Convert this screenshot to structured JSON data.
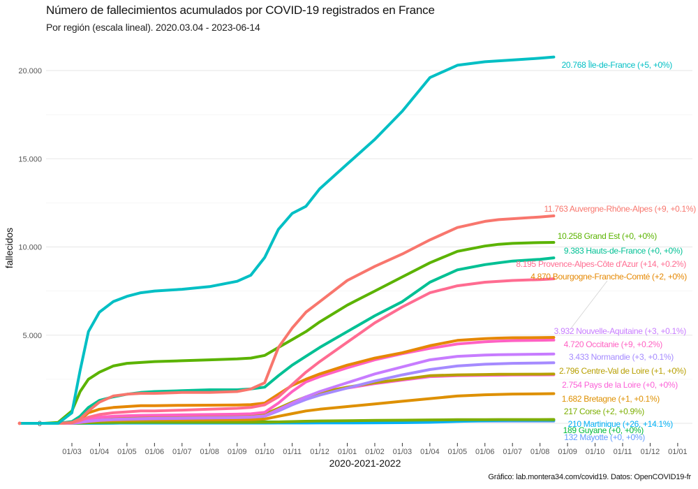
{
  "header": {
    "title": "Número de fallecimientos acumulados por COVID-19 registrados en France",
    "subtitle": "Por región (escala lineal). 2020.03.04 - 2023-06-14"
  },
  "caption": "Gráfico: lab.montera34.com/covid19. Datos: OpenCOVID19-fr",
  "chart_data": {
    "type": "line",
    "title": "Número de fallecimientos acumulados por COVID-19 registrados en France",
    "subtitle": "Por región (escala lineal). 2020.03.04 - 2023-06-14",
    "xlabel": "2020-2021-2022",
    "ylabel": "fallecidos",
    "x_unit": "months since 2020-02-01",
    "xlim": [
      -0.9,
      23.0
    ],
    "ylim": [
      0,
      21500
    ],
    "grid": true,
    "legend": "direct labels at line ends (right)",
    "x_ticks": [
      "01/03",
      "01/04",
      "01/05",
      "01/06",
      "01/07",
      "01/08",
      "01/09",
      "01/10",
      "01/11",
      "01/12",
      "01/01",
      "01/02",
      "01/03",
      "01/04",
      "01/05",
      "01/06",
      "01/07",
      "01/08",
      "01/09",
      "01/10",
      "01/11",
      "01/12",
      "01/01"
    ],
    "y_ticks": [
      {
        "value": 0,
        "label": "0"
      },
      {
        "value": 5000,
        "label": "5.000"
      },
      {
        "value": 10000,
        "label": "10.000"
      },
      {
        "value": 15000,
        "label": "15.000"
      },
      {
        "value": 20000,
        "label": "20.000"
      }
    ],
    "x": [
      -0.9,
      0.0,
      0.5,
      1.0,
      1.3,
      1.6,
      2.0,
      2.5,
      3.0,
      3.5,
      4.0,
      5.0,
      6.0,
      7.0,
      7.5,
      8.0,
      8.5,
      9.0,
      9.5,
      10.0,
      11.0,
      12.0,
      13.0,
      14.0,
      15.0,
      16.0,
      16.5,
      17.0,
      18.0,
      18.5
    ],
    "series": [
      {
        "name": "Île-de-France",
        "label": "20.768 Île-de-France (+5, +0%)",
        "color": "#00BFC4",
        "values": [
          0,
          0,
          0,
          600,
          3000,
          5200,
          6300,
          6900,
          7200,
          7400,
          7500,
          7600,
          7750,
          8050,
          8400,
          9400,
          11000,
          11900,
          12300,
          13300,
          14700,
          16100,
          17700,
          19600,
          20300,
          20500,
          20550,
          20600,
          20700,
          20768
        ]
      },
      {
        "name": "Auvergne-Rhône-Alpes",
        "label": "11.763 Auvergne-Rhône-Alpes (+9, +0.1%)",
        "color": "#F8766D",
        "values": [
          0,
          0,
          0,
          50,
          250,
          700,
          1200,
          1550,
          1650,
          1700,
          1700,
          1750,
          1750,
          1800,
          1950,
          2300,
          4300,
          5400,
          6300,
          6900,
          8100,
          8900,
          9600,
          10400,
          11100,
          11450,
          11550,
          11600,
          11700,
          11763
        ]
      },
      {
        "name": "Grand Est",
        "label": "10.258 Grand Est (+0, +0%)",
        "color": "#5BB300",
        "values": [
          0,
          0,
          50,
          700,
          1800,
          2500,
          2900,
          3250,
          3400,
          3450,
          3500,
          3550,
          3600,
          3650,
          3700,
          3850,
          4300,
          4750,
          5200,
          5750,
          6700,
          7500,
          8300,
          9100,
          9750,
          10050,
          10150,
          10200,
          10250,
          10258
        ]
      },
      {
        "name": "Hauts-de-France",
        "label": "9.383 Hauts-de-France (+0, +0%)",
        "color": "#00C094",
        "values": [
          0,
          0,
          0,
          100,
          400,
          900,
          1300,
          1500,
          1650,
          1750,
          1800,
          1850,
          1900,
          1900,
          1950,
          2050,
          2700,
          3300,
          3800,
          4300,
          5200,
          6100,
          6900,
          8000,
          8700,
          9000,
          9100,
          9200,
          9300,
          9383
        ]
      },
      {
        "name": "Provence-Alpes-Côte d'Azur",
        "label": "8.195 Provence-Alpes-Côte d'Azur (+14, +0.2%)",
        "color": "#FF6C91",
        "values": [
          0,
          0,
          0,
          30,
          150,
          350,
          500,
          600,
          650,
          700,
          700,
          750,
          800,
          850,
          900,
          1050,
          1500,
          2200,
          2900,
          3500,
          4600,
          5700,
          6600,
          7400,
          7800,
          8000,
          8050,
          8100,
          8150,
          8195
        ]
      },
      {
        "name": "Bourgogne-Franche-Comté",
        "label": "4.870 Bourgogne-Franche-Comté (+2, +0%)",
        "color": "#E58700",
        "values": [
          0,
          0,
          0,
          30,
          200,
          600,
          800,
          900,
          950,
          1000,
          1000,
          1020,
          1030,
          1040,
          1060,
          1150,
          1650,
          2150,
          2500,
          2800,
          3300,
          3700,
          4000,
          4400,
          4700,
          4800,
          4830,
          4850,
          4860,
          4870
        ]
      },
      {
        "name": "Nouvelle-Aquitaine",
        "label": "3.932 Nouvelle-Aquitaine (+3, +0.1%)",
        "color": "#C77CFF",
        "values": [
          0,
          0,
          0,
          10,
          60,
          120,
          180,
          220,
          250,
          270,
          280,
          300,
          320,
          340,
          360,
          420,
          780,
          1150,
          1500,
          1800,
          2300,
          2800,
          3200,
          3600,
          3800,
          3870,
          3890,
          3900,
          3920,
          3932
        ]
      },
      {
        "name": "Occitanie",
        "label": "4.720 Occitanie (+9, +0.2%)",
        "color": "#FF61C3",
        "values": [
          0,
          0,
          0,
          20,
          100,
          250,
          350,
          400,
          430,
          450,
          460,
          480,
          500,
          520,
          540,
          620,
          1150,
          1800,
          2350,
          2650,
          3150,
          3600,
          3950,
          4250,
          4500,
          4620,
          4660,
          4690,
          4710,
          4720
        ]
      },
      {
        "name": "Normandie",
        "label": "3.433 Normandie (+3, +0.1%)",
        "color": "#A58AFF",
        "values": [
          0,
          0,
          0,
          10,
          50,
          110,
          170,
          210,
          230,
          250,
          260,
          280,
          300,
          320,
          340,
          400,
          700,
          1050,
          1350,
          1600,
          2000,
          2400,
          2750,
          3050,
          3250,
          3350,
          3380,
          3400,
          3420,
          3433
        ]
      },
      {
        "name": "Centre-Val de Loire",
        "label": "2.796 Centre-Val de Loire (+1, +0%)",
        "color": "#B79F00",
        "values": [
          0,
          0,
          0,
          20,
          120,
          270,
          350,
          380,
          400,
          410,
          420,
          430,
          440,
          450,
          460,
          520,
          850,
          1200,
          1500,
          1750,
          2050,
          2300,
          2500,
          2700,
          2750,
          2770,
          2780,
          2785,
          2790,
          2796
        ]
      },
      {
        "name": "Pays de la Loire",
        "label": "2.754 Pays de la Loire (+0, +0%)",
        "color": "#FB61D7",
        "values": [
          0,
          0,
          0,
          10,
          80,
          200,
          290,
          320,
          340,
          350,
          360,
          370,
          380,
          390,
          400,
          460,
          800,
          1150,
          1450,
          1700,
          2000,
          2250,
          2450,
          2650,
          2700,
          2720,
          2730,
          2740,
          2750,
          2754
        ]
      },
      {
        "name": "Bretagne",
        "label": "1.682 Bretagne (+1, +0.1%)",
        "color": "#DE9000",
        "values": [
          0,
          0,
          0,
          10,
          40,
          100,
          140,
          160,
          170,
          180,
          185,
          190,
          195,
          200,
          210,
          240,
          400,
          550,
          700,
          800,
          950,
          1100,
          1250,
          1400,
          1550,
          1620,
          1640,
          1660,
          1670,
          1682
        ]
      },
      {
        "name": "Corse",
        "label": "217 Corse (+2, +0.9%)",
        "color": "#7CAE00",
        "values": [
          0,
          0,
          0,
          5,
          20,
          40,
          50,
          55,
          57,
          58,
          58,
          59,
          60,
          60,
          61,
          63,
          80,
          100,
          120,
          135,
          150,
          165,
          180,
          195,
          205,
          210,
          212,
          214,
          215,
          217
        ]
      },
      {
        "name": "Martinique",
        "label": "210 Martinique (+26, +14.1%)",
        "color": "#00B0F6",
        "values": [
          0,
          0,
          0,
          2,
          8,
          14,
          15,
          15,
          15,
          15,
          15,
          15,
          15,
          16,
          16,
          17,
          18,
          19,
          20,
          22,
          25,
          30,
          40,
          60,
          110,
          150,
          170,
          184,
          190,
          210
        ]
      },
      {
        "name": "Guyane",
        "label": "189 Guyane (+0, +0%)",
        "color": "#00BA38",
        "values": [
          0,
          0,
          0,
          1,
          2,
          3,
          5,
          8,
          30,
          60,
          70,
          72,
          73,
          74,
          75,
          78,
          80,
          85,
          90,
          95,
          110,
          125,
          140,
          160,
          175,
          182,
          185,
          187,
          188,
          189
        ]
      },
      {
        "name": "Mayotte",
        "label": "132 Mayotte (+0, +0%)",
        "color": "#619CFF",
        "values": [
          0,
          0,
          0,
          0,
          5,
          10,
          15,
          20,
          25,
          30,
          35,
          38,
          40,
          40,
          41,
          42,
          45,
          55,
          70,
          90,
          110,
          120,
          125,
          128,
          130,
          131,
          131,
          132,
          132,
          132
        ]
      }
    ]
  }
}
